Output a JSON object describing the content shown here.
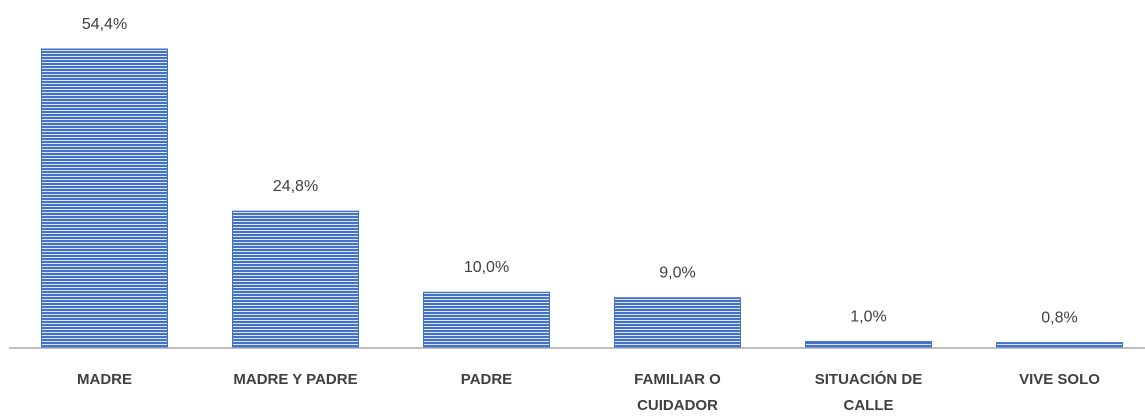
{
  "chart_data": {
    "type": "bar",
    "categories": [
      "MADRE",
      "MADRE Y PADRE",
      "PADRE",
      "FAMILIAR O CUIDADOR",
      "SITUACIÓN DE CALLE",
      "VIVE SOLO"
    ],
    "values": [
      54.4,
      24.8,
      10.0,
      9.0,
      1.0,
      0.8
    ],
    "value_labels": [
      "54,4%",
      "24,8%",
      "10,0%",
      "9,0%",
      "1,0%",
      "0,8%"
    ],
    "color": "#4472c4"
  }
}
